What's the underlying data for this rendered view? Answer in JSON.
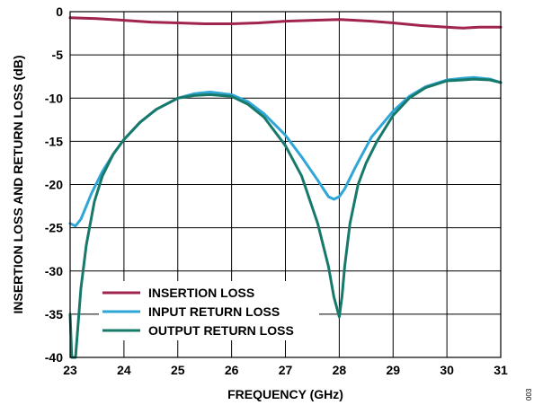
{
  "figure_id": "003",
  "colors": {
    "insertion": "#a0244e",
    "input": "#2fa6d6",
    "output": "#17796a",
    "grid": "#000000"
  },
  "chart_data": {
    "type": "line",
    "xlabel": "FREQUENCY (GHz)",
    "ylabel": "INSERTION LOSS AND RETURN LOSS (dB)",
    "xlim": [
      23,
      31
    ],
    "ylim": [
      -40,
      0
    ],
    "xticks": [
      23,
      24,
      25,
      26,
      27,
      28,
      29,
      30,
      31
    ],
    "yticks": [
      0,
      -5,
      -10,
      -15,
      -20,
      -25,
      -30,
      -35,
      -40
    ],
    "grid": true,
    "legend_position": "bottom-left",
    "series": [
      {
        "name": "INSERTION LOSS",
        "color": "#a0244e",
        "x": [
          23,
          23.5,
          24,
          24.5,
          25,
          25.5,
          26,
          26.5,
          27,
          27.5,
          28,
          28.3,
          28.6,
          29,
          29.5,
          30,
          30.3,
          30.6,
          31
        ],
        "y": [
          -0.7,
          -0.8,
          -1.0,
          -1.2,
          -1.3,
          -1.4,
          -1.4,
          -1.3,
          -1.1,
          -1.0,
          -0.9,
          -1.0,
          -1.1,
          -1.3,
          -1.6,
          -1.8,
          -1.9,
          -1.8,
          -1.8
        ]
      },
      {
        "name": "INPUT RETURN LOSS",
        "color": "#2fa6d6",
        "x": [
          23,
          23.1,
          23.2,
          23.4,
          23.6,
          23.8,
          24,
          24.3,
          24.6,
          25,
          25.3,
          25.6,
          26,
          26.3,
          26.6,
          27,
          27.3,
          27.6,
          27.8,
          27.9,
          28,
          28.1,
          28.3,
          28.6,
          29,
          29.3,
          29.6,
          30,
          30.3,
          30.5,
          30.8,
          31
        ],
        "y": [
          -24.5,
          -24.8,
          -24,
          -21,
          -18.5,
          -16.5,
          -14.8,
          -12.8,
          -11.3,
          -10.0,
          -9.5,
          -9.3,
          -9.6,
          -10.4,
          -11.8,
          -14.3,
          -16.8,
          -19.5,
          -21.4,
          -21.7,
          -21.4,
          -20.5,
          -18.0,
          -14.5,
          -11.5,
          -9.8,
          -8.7,
          -7.9,
          -7.7,
          -7.6,
          -7.8,
          -8.2
        ]
      },
      {
        "name": "OUTPUT RETURN LOSS",
        "color": "#17796a",
        "x": [
          23,
          23.03,
          23.06,
          23.1,
          23.15,
          23.2,
          23.3,
          23.45,
          23.6,
          23.8,
          24,
          24.3,
          24.6,
          25,
          25.3,
          25.6,
          26,
          26.3,
          26.6,
          27,
          27.3,
          27.6,
          27.8,
          27.9,
          28,
          28.05,
          28.1,
          28.2,
          28.35,
          28.5,
          28.7,
          29,
          29.3,
          29.6,
          30,
          30.3,
          30.5,
          30.8,
          31
        ],
        "y": [
          -35,
          -40,
          -40,
          -40,
          -36,
          -32,
          -27,
          -22,
          -19,
          -16.5,
          -14.8,
          -12.8,
          -11.3,
          -10.0,
          -9.7,
          -9.6,
          -9.8,
          -10.7,
          -12.2,
          -15.5,
          -19.0,
          -24.5,
          -29.5,
          -33,
          -35.3,
          -33,
          -29.5,
          -24.5,
          -20.0,
          -17.5,
          -15.0,
          -12.0,
          -10.0,
          -8.8,
          -8.0,
          -7.9,
          -7.8,
          -7.9,
          -8.2
        ]
      }
    ]
  }
}
